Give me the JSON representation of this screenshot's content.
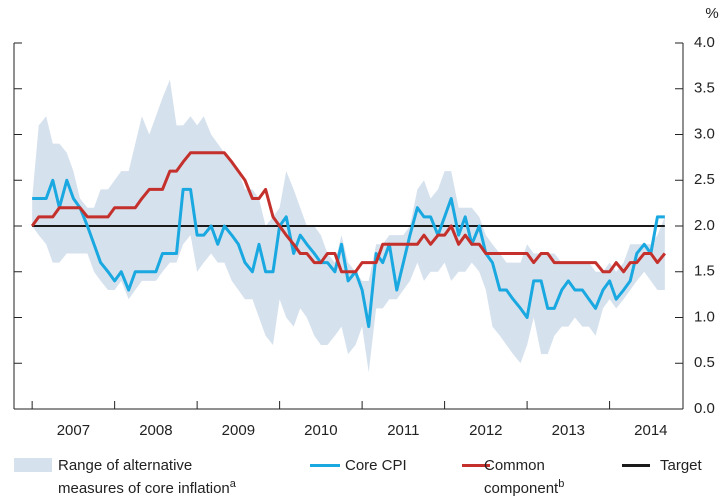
{
  "chart_data": {
    "type": "line",
    "ylabel": "%",
    "x": [
      2007.0,
      2007.08,
      2007.17,
      2007.25,
      2007.33,
      2007.42,
      2007.5,
      2007.58,
      2007.67,
      2007.75,
      2007.83,
      2007.92,
      2008.0,
      2008.08,
      2008.17,
      2008.25,
      2008.33,
      2008.42,
      2008.5,
      2008.58,
      2008.67,
      2008.75,
      2008.83,
      2008.92,
      2009.0,
      2009.08,
      2009.17,
      2009.25,
      2009.33,
      2009.42,
      2009.5,
      2009.58,
      2009.67,
      2009.75,
      2009.83,
      2009.92,
      2010.0,
      2010.08,
      2010.17,
      2010.25,
      2010.33,
      2010.42,
      2010.5,
      2010.58,
      2010.67,
      2010.75,
      2010.83,
      2010.92,
      2011.0,
      2011.08,
      2011.17,
      2011.25,
      2011.33,
      2011.42,
      2011.5,
      2011.58,
      2011.67,
      2011.75,
      2011.83,
      2011.92,
      2012.0,
      2012.08,
      2012.17,
      2012.25,
      2012.33,
      2012.42,
      2012.5,
      2012.58,
      2012.67,
      2012.75,
      2012.83,
      2012.92,
      2013.0,
      2013.08,
      2013.17,
      2013.25,
      2013.33,
      2013.42,
      2013.5,
      2013.58,
      2013.67,
      2013.75,
      2013.83,
      2013.92,
      2014.0,
      2014.08,
      2014.17,
      2014.25,
      2014.33,
      2014.42,
      2014.5,
      2014.58,
      2014.67
    ],
    "xlim": [
      2006.78,
      2014.89
    ],
    "xticks": [
      {
        "value": 2007.5,
        "label": "2007"
      },
      {
        "value": 2008.5,
        "label": "2008"
      },
      {
        "value": 2009.5,
        "label": "2009"
      },
      {
        "value": 2010.5,
        "label": "2010"
      },
      {
        "value": 2011.5,
        "label": "2011"
      },
      {
        "value": 2012.5,
        "label": "2012"
      },
      {
        "value": 2013.5,
        "label": "2013"
      },
      {
        "value": 2014.5,
        "label": "2014"
      }
    ],
    "ylim": [
      0,
      4
    ],
    "yticks": [
      {
        "value": 0,
        "label": "0.0"
      },
      {
        "value": 0.5,
        "label": "0.5"
      },
      {
        "value": 1,
        "label": "1.0"
      },
      {
        "value": 1.5,
        "label": "1.5"
      },
      {
        "value": 2,
        "label": "2.0"
      },
      {
        "value": 2.5,
        "label": "2.5"
      },
      {
        "value": 3,
        "label": "3.0"
      },
      {
        "value": 3.5,
        "label": "3.5"
      },
      {
        "value": 4,
        "label": "4.0"
      }
    ],
    "band": {
      "name": "Range of alternative measures of core inflation",
      "note": "a",
      "color": "#d6e1ee",
      "high": [
        2.3,
        3.1,
        3.2,
        2.9,
        2.9,
        2.8,
        2.6,
        2.3,
        2.2,
        2.2,
        2.4,
        2.4,
        2.5,
        2.6,
        2.6,
        2.9,
        3.2,
        3.0,
        3.2,
        3.4,
        3.6,
        3.1,
        3.1,
        3.2,
        3.1,
        3.2,
        3.0,
        2.9,
        2.8,
        2.7,
        2.6,
        2.4,
        2.4,
        2.3,
        2.0,
        2.1,
        2.2,
        2.6,
        2.4,
        2.2,
        2.0,
        2.0,
        1.9,
        1.7,
        1.6,
        1.9,
        1.6,
        1.5,
        1.4,
        1.4,
        1.8,
        1.8,
        1.9,
        1.9,
        1.9,
        2.0,
        2.4,
        2.5,
        2.3,
        2.4,
        2.6,
        2.6,
        2.2,
        2.2,
        2.2,
        2.1,
        1.9,
        1.8,
        1.7,
        1.6,
        1.6,
        1.6,
        1.8,
        1.7,
        1.7,
        1.7,
        1.7,
        1.6,
        1.6,
        1.6,
        1.6,
        1.6,
        1.5,
        1.5,
        1.6,
        1.5,
        1.6,
        1.8,
        1.8,
        1.8,
        1.8,
        1.9,
        2.1
      ],
      "low": [
        2.0,
        1.9,
        1.8,
        1.6,
        1.6,
        1.7,
        1.7,
        1.7,
        1.7,
        1.5,
        1.4,
        1.3,
        1.3,
        1.4,
        1.2,
        1.3,
        1.4,
        1.4,
        1.4,
        1.5,
        1.6,
        1.6,
        1.8,
        1.9,
        1.5,
        1.6,
        1.7,
        1.6,
        1.6,
        1.4,
        1.3,
        1.2,
        1.2,
        1.0,
        0.8,
        0.7,
        1.2,
        1.0,
        0.9,
        1.1,
        1.0,
        0.8,
        0.7,
        0.7,
        0.8,
        0.9,
        0.6,
        0.7,
        0.9,
        0.4,
        1.1,
        1.1,
        1.2,
        1.2,
        1.3,
        1.4,
        1.6,
        1.4,
        1.5,
        1.5,
        1.6,
        1.4,
        1.5,
        1.5,
        1.6,
        1.5,
        1.3,
        0.9,
        0.8,
        0.7,
        0.6,
        0.5,
        0.7,
        1.0,
        0.6,
        0.6,
        0.8,
        0.9,
        0.9,
        1.0,
        0.9,
        0.9,
        0.8,
        1.1,
        1.2,
        1.1,
        1.2,
        1.3,
        1.4,
        1.5,
        1.4,
        1.3,
        1.3
      ]
    },
    "series": [
      {
        "name": "Core CPI",
        "color": "#1aa8e0",
        "values": [
          2.3,
          2.3,
          2.3,
          2.5,
          2.2,
          2.5,
          2.3,
          2.2,
          2.0,
          1.8,
          1.6,
          1.5,
          1.4,
          1.5,
          1.3,
          1.5,
          1.5,
          1.5,
          1.5,
          1.7,
          1.7,
          1.7,
          2.4,
          2.4,
          1.9,
          1.9,
          2.0,
          1.8,
          2.0,
          1.9,
          1.8,
          1.6,
          1.5,
          1.8,
          1.5,
          1.5,
          2.0,
          2.1,
          1.7,
          1.9,
          1.8,
          1.7,
          1.6,
          1.6,
          1.5,
          1.8,
          1.4,
          1.5,
          1.3,
          0.9,
          1.7,
          1.6,
          1.8,
          1.3,
          1.6,
          1.9,
          2.2,
          2.1,
          2.1,
          1.9,
          2.1,
          2.3,
          1.9,
          2.1,
          1.8,
          2.0,
          1.7,
          1.6,
          1.3,
          1.3,
          1.2,
          1.1,
          1.0,
          1.4,
          1.4,
          1.1,
          1.1,
          1.3,
          1.4,
          1.3,
          1.3,
          1.2,
          1.1,
          1.3,
          1.4,
          1.2,
          1.3,
          1.4,
          1.7,
          1.8,
          1.7,
          2.1,
          2.1
        ]
      },
      {
        "name": "Common component",
        "note": "b",
        "color": "#c4302b",
        "values": [
          2.0,
          2.1,
          2.1,
          2.1,
          2.2,
          2.2,
          2.2,
          2.2,
          2.1,
          2.1,
          2.1,
          2.1,
          2.2,
          2.2,
          2.2,
          2.2,
          2.3,
          2.4,
          2.4,
          2.4,
          2.6,
          2.6,
          2.7,
          2.8,
          2.8,
          2.8,
          2.8,
          2.8,
          2.8,
          2.7,
          2.6,
          2.5,
          2.3,
          2.3,
          2.4,
          2.1,
          2.0,
          1.9,
          1.8,
          1.7,
          1.7,
          1.6,
          1.6,
          1.7,
          1.7,
          1.5,
          1.5,
          1.5,
          1.6,
          1.6,
          1.6,
          1.8,
          1.8,
          1.8,
          1.8,
          1.8,
          1.8,
          1.9,
          1.8,
          1.9,
          1.9,
          2.0,
          1.8,
          1.9,
          1.8,
          1.8,
          1.7,
          1.7,
          1.7,
          1.7,
          1.7,
          1.7,
          1.7,
          1.6,
          1.7,
          1.7,
          1.6,
          1.6,
          1.6,
          1.6,
          1.6,
          1.6,
          1.6,
          1.5,
          1.5,
          1.6,
          1.5,
          1.6,
          1.6,
          1.7,
          1.7,
          1.6,
          1.7
        ]
      }
    ],
    "reference": {
      "name": "Target",
      "value": 2,
      "color": "#1a1a1a"
    }
  }
}
